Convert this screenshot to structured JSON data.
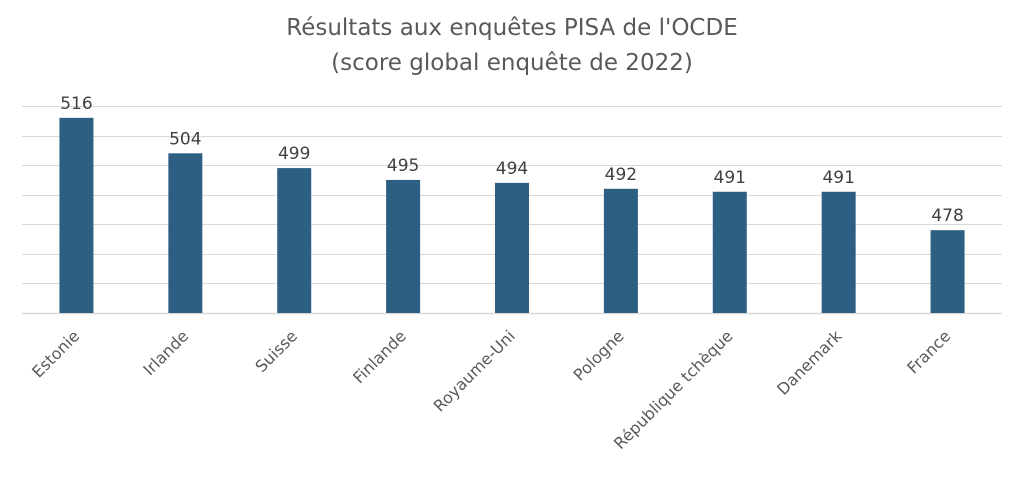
{
  "chart_data": {
    "type": "bar",
    "title": "Résultats aux enquêtes PISA de l'OCDE",
    "subtitle": "(score global enquête de 2022)",
    "xlabel": "",
    "ylabel": "",
    "categories": [
      "Estonie",
      "Irlande",
      "Suisse",
      "Finlande",
      "Royaume-Uni",
      "Pologne",
      "République tchèque",
      "Danemark",
      "France"
    ],
    "values": [
      516,
      504,
      499,
      495,
      494,
      492,
      491,
      491,
      478
    ],
    "ylim": [
      450,
      520
    ],
    "grid": true,
    "y_tick_labels_shown": false,
    "legend": false,
    "bar_color": "#2c5f82",
    "gridline_color": "#d9d9d9"
  }
}
